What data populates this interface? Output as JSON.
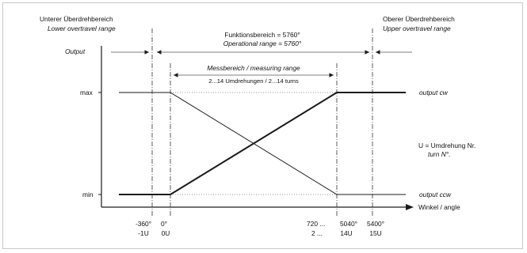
{
  "upper_left": {
    "de": "Unterer Überdrehbereich",
    "en": "Lower overtravel range"
  },
  "upper_right": {
    "de": "Oberer Überdrehbereich",
    "en": "Upper overtravel range"
  },
  "functional": {
    "de": "Funktionsbereich = 5760°",
    "en": "Operational range = 5760°"
  },
  "measuring": {
    "title": "Messbereich / measuring range",
    "turns": "2...14 Umdrehungen  / 2...14 turns"
  },
  "axis": {
    "y_label": "Output",
    "x_label": "Winkel / angle",
    "max": "max",
    "min": "min"
  },
  "outputs": {
    "cw": "output cw",
    "ccw": "output ccw"
  },
  "legend_u": {
    "line1": "U = Umdrehung Nr.",
    "line2": "turn N°."
  },
  "ticks": [
    {
      "top": "-360°",
      "bottom": "-1U"
    },
    {
      "top": "0°",
      "bottom": "0U"
    },
    {
      "top": "720 ...",
      "bottom": "2 ..."
    },
    {
      "top": "5040°",
      "bottom": "14U"
    },
    {
      "top": "5400°",
      "bottom": "15U"
    }
  ],
  "colors": {
    "line": "#1a1a1a",
    "thin": "#555555",
    "dotted": "#777777"
  }
}
